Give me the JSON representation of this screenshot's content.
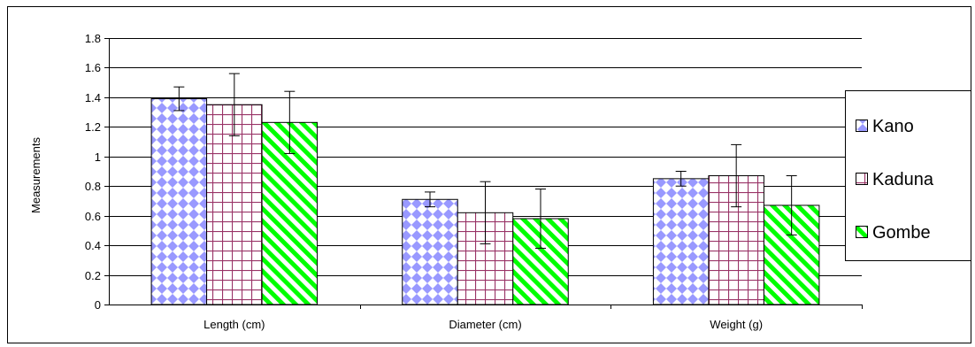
{
  "chart_data": {
    "type": "bar",
    "title": "",
    "xlabel": "",
    "ylabel": "Measurements",
    "categories": [
      "Length (cm)",
      "Diameter (cm)",
      "Weight (g)"
    ],
    "ylim": [
      0,
      1.8
    ],
    "yticks": [
      0,
      0.2,
      0.4,
      0.6,
      0.8,
      1,
      1.2,
      1.4,
      1.6,
      1.8
    ],
    "ytick_labels": [
      "0",
      "0.2",
      "0.4",
      "0.6",
      "0.8",
      "1",
      "1.2",
      "1.4",
      "1.6",
      "1.8"
    ],
    "grid": "horizontal",
    "legend_position": "right",
    "series": [
      {
        "name": "Kano",
        "values": [
          1.39,
          0.71,
          0.85
        ],
        "error": [
          0.08,
          0.05,
          0.05
        ],
        "color": "#9999ff",
        "pattern": "diamonds"
      },
      {
        "name": "Kaduna",
        "values": [
          1.35,
          0.62,
          0.87
        ],
        "error": [
          0.21,
          0.21,
          0.21
        ],
        "color": "#993366",
        "pattern": "grid"
      },
      {
        "name": "Gombe",
        "values": [
          1.23,
          0.58,
          0.67
        ],
        "error": [
          0.21,
          0.2,
          0.2
        ],
        "color": "#00ff00",
        "pattern": "diagonal"
      }
    ]
  }
}
